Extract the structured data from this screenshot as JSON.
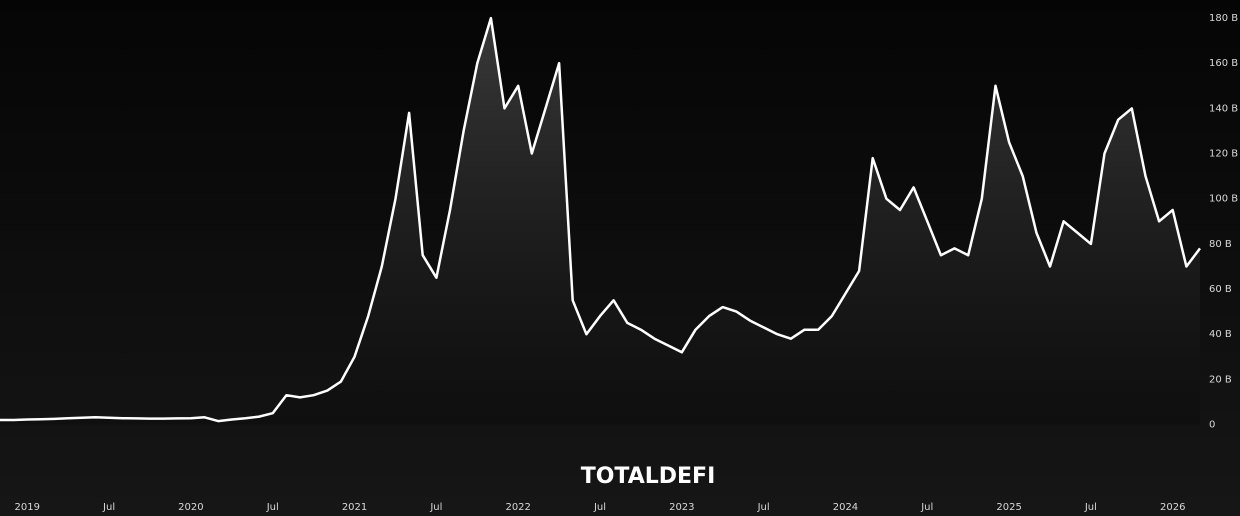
{
  "chart_data": {
    "type": "area",
    "title": "TOTALDEFI",
    "color": "#ffffff",
    "x": [
      "2018-11",
      "2018-12",
      "2019-01",
      "2019-02",
      "2019-03",
      "2019-04",
      "2019-05",
      "2019-06",
      "2019-07",
      "2019-08",
      "2019-09",
      "2019-10",
      "2019-11",
      "2019-12",
      "2020-01",
      "2020-02",
      "2020-03",
      "2020-04",
      "2020-05",
      "2020-06",
      "2020-07",
      "2020-08",
      "2020-09",
      "2020-10",
      "2020-11",
      "2020-12",
      "2021-01",
      "2021-02",
      "2021-03",
      "2021-04",
      "2021-05",
      "2021-06",
      "2021-07",
      "2021-08",
      "2021-09",
      "2021-10",
      "2021-11",
      "2021-12",
      "2022-01",
      "2022-02",
      "2022-03",
      "2022-04",
      "2022-05",
      "2022-06",
      "2022-07",
      "2022-08",
      "2022-09",
      "2022-10",
      "2022-11",
      "2022-12",
      "2023-01",
      "2023-02",
      "2023-03",
      "2023-04",
      "2023-05",
      "2023-06",
      "2023-07",
      "2023-08",
      "2023-09",
      "2023-10",
      "2023-11",
      "2023-12",
      "2024-01",
      "2024-02",
      "2024-03",
      "2024-04",
      "2024-05",
      "2024-06",
      "2024-07",
      "2024-08",
      "2024-09",
      "2024-10",
      "2024-11",
      "2024-12",
      "2025-01",
      "2025-02",
      "2025-03",
      "2025-04",
      "2025-05",
      "2025-06",
      "2025-07",
      "2025-08",
      "2025-09",
      "2025-10",
      "2025-11",
      "2025-12",
      "2026-01",
      "2026-02",
      "2026-03"
    ],
    "values": [
      2,
      2,
      2.2,
      2.3,
      2.5,
      2.8,
      3,
      3.2,
      3,
      2.8,
      2.7,
      2.6,
      2.6,
      2.7,
      2.8,
      3.2,
      1.5,
      2.2,
      2.8,
      3.5,
      5,
      13,
      12,
      13,
      15,
      19,
      30,
      48,
      70,
      100,
      138,
      75,
      65,
      95,
      130,
      160,
      180,
      140,
      150,
      120,
      140,
      160,
      55,
      40,
      48,
      55,
      45,
      42,
      38,
      35,
      32,
      42,
      48,
      52,
      50,
      46,
      43,
      40,
      38,
      42,
      42,
      48,
      58,
      68,
      118,
      100,
      95,
      105,
      90,
      75,
      78,
      75,
      100,
      150,
      125,
      110,
      85,
      70,
      90,
      85,
      80,
      120,
      135,
      140,
      110,
      90,
      95,
      70,
      78
    ],
    "xlim": [
      "2018-11",
      "2026-03"
    ],
    "xticks": [
      {
        "value": "2019-01",
        "label": "2019"
      },
      {
        "value": "2019-07",
        "label": "Jul"
      },
      {
        "value": "2020-01",
        "label": "2020"
      },
      {
        "value": "2020-07",
        "label": "Jul"
      },
      {
        "value": "2021-01",
        "label": "2021"
      },
      {
        "value": "2021-07",
        "label": "Jul"
      },
      {
        "value": "2022-01",
        "label": "2022"
      },
      {
        "value": "2022-07",
        "label": "Jul"
      },
      {
        "value": "2023-01",
        "label": "2023"
      },
      {
        "value": "2023-07",
        "label": "Jul"
      },
      {
        "value": "2024-01",
        "label": "2024"
      },
      {
        "value": "2024-07",
        "label": "Jul"
      },
      {
        "value": "2025-01",
        "label": "2025"
      },
      {
        "value": "2025-07",
        "label": "Jul"
      },
      {
        "value": "2026-01",
        "label": "2026"
      }
    ],
    "ylim": [
      -29,
      188
    ],
    "yticks": [
      0,
      {
        "value": 20,
        "label": "20 B"
      },
      {
        "value": 40,
        "label": "40 B"
      },
      {
        "value": 60,
        "label": "60 B"
      },
      {
        "value": 80,
        "label": "80 B"
      },
      {
        "value": 100,
        "label": "100 B"
      },
      {
        "value": 120,
        "label": "120 B"
      },
      {
        "value": 140,
        "label": "140 B"
      },
      {
        "value": 160,
        "label": "160 B"
      },
      {
        "value": 180,
        "label": "180 B"
      }
    ]
  }
}
